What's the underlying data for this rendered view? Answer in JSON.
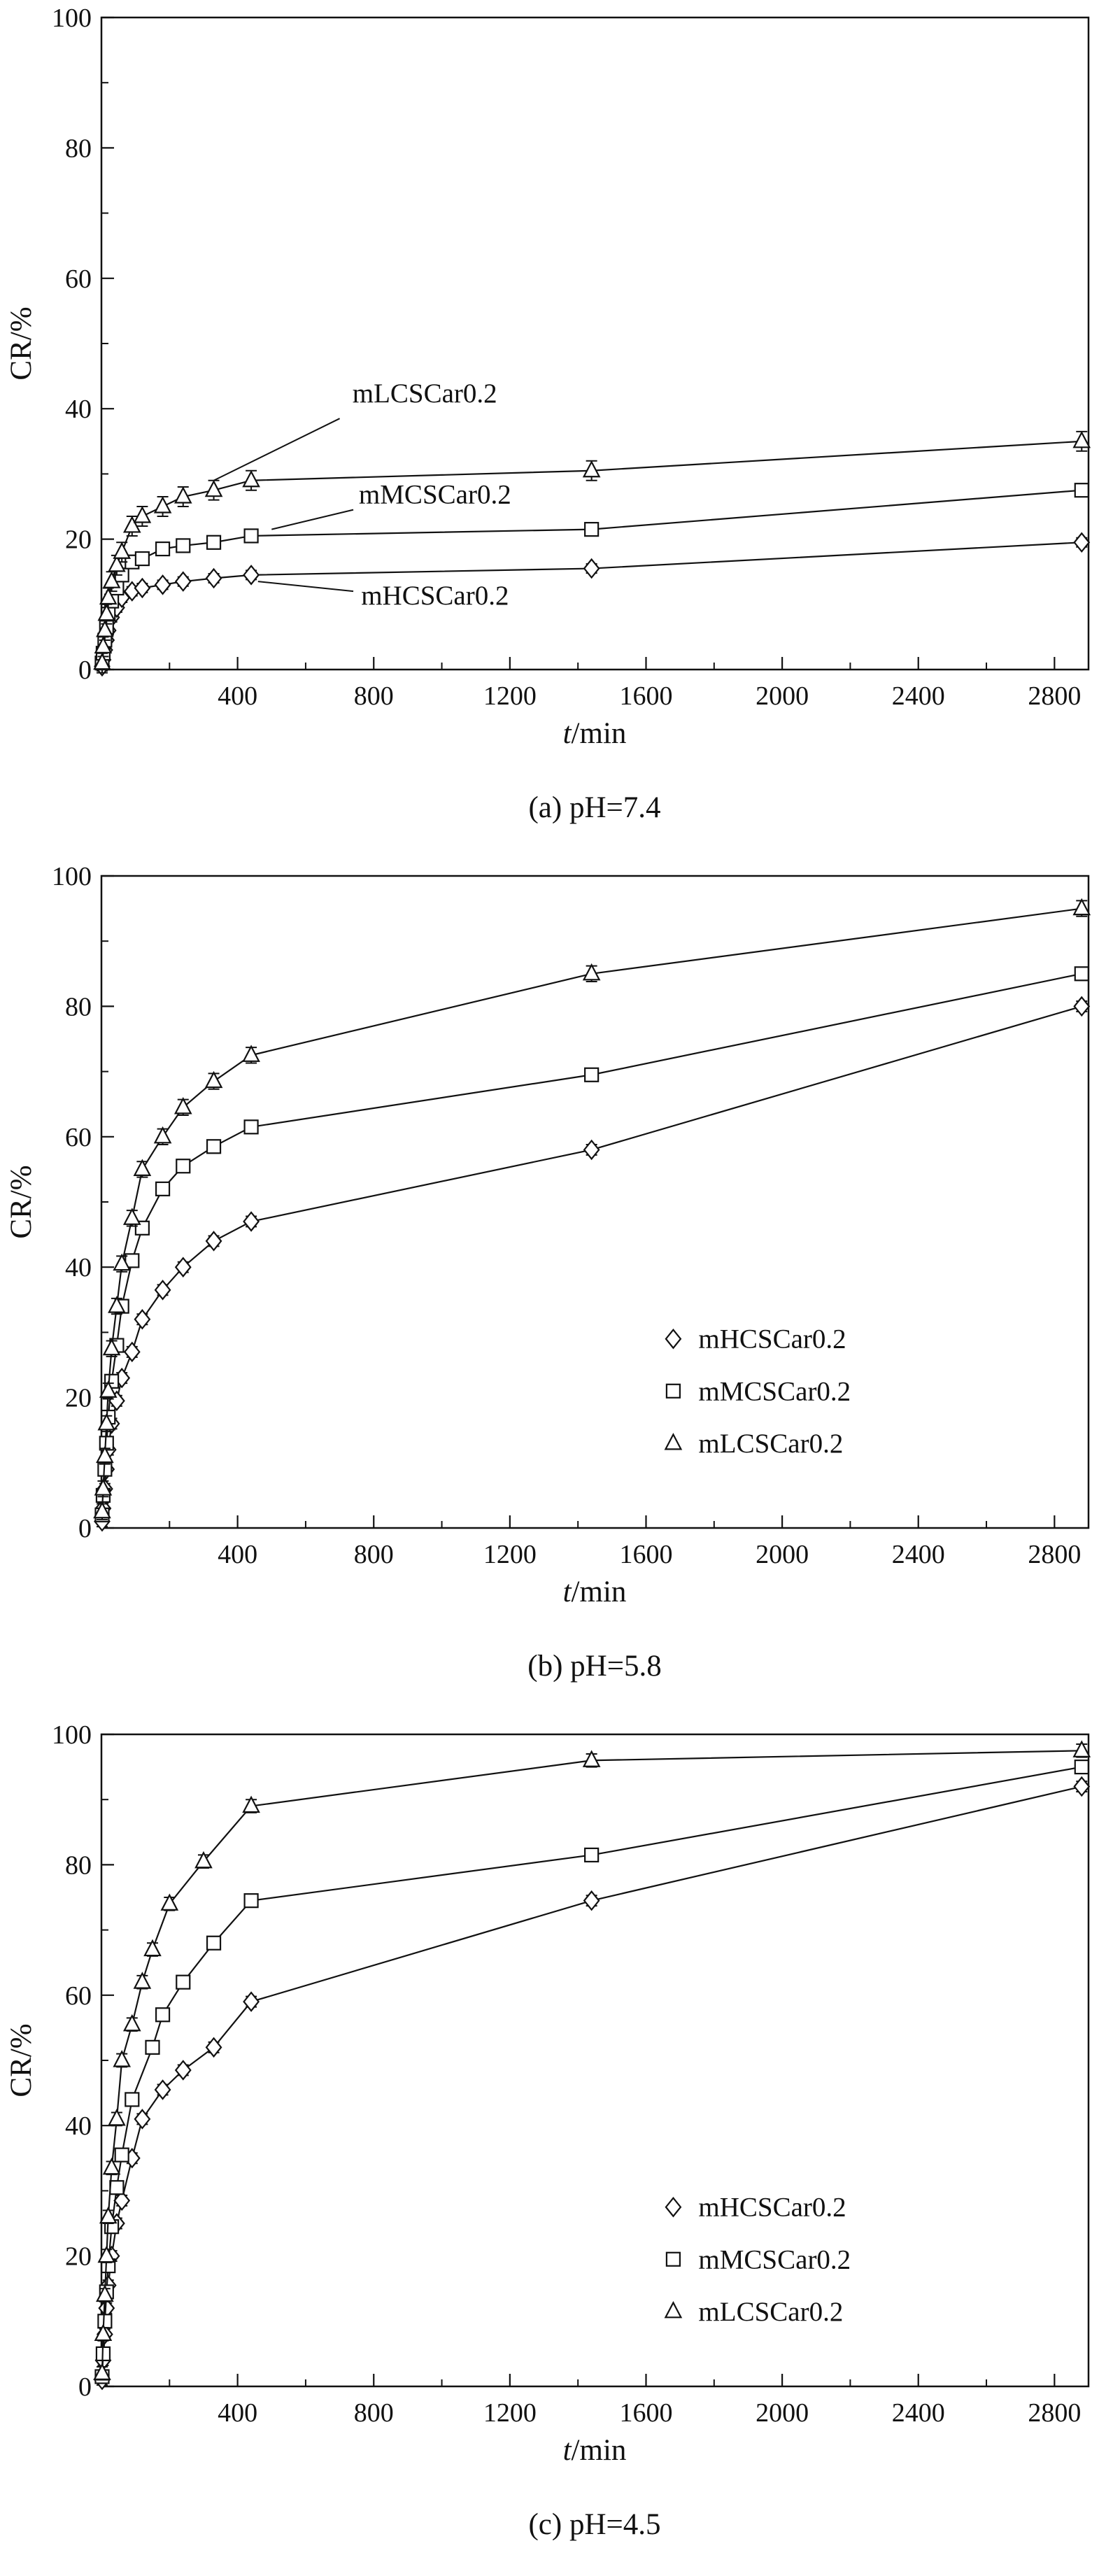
{
  "figure": {
    "background": "#ffffff",
    "line_color": "#111111",
    "marker_fill": "#ffffff"
  },
  "chart_data": [
    {
      "id": "a",
      "type": "line",
      "caption": "(a) pH=7.4",
      "xlabel_italic": "t",
      "xlabel_unit": "/min",
      "ylabel": "CR/%",
      "xlim": [
        0,
        2900
      ],
      "ylim": [
        0,
        100
      ],
      "xticks": [
        400,
        800,
        1200,
        1600,
        2000,
        2400,
        2800
      ],
      "yticks": [
        0,
        20,
        40,
        60,
        80,
        100
      ],
      "x_minor_step": 200,
      "y_minor_step": 10,
      "grid": false,
      "legend": null,
      "series": [
        {
          "name": "mHCSCar0.2",
          "marker": "diamond",
          "yerr": 0.7,
          "x": [
            2,
            5,
            10,
            15,
            20,
            30,
            45,
            60,
            90,
            120,
            180,
            240,
            330,
            440,
            1440,
            2880
          ],
          "y": [
            0.5,
            1.5,
            3,
            4.5,
            6,
            8,
            9.5,
            11,
            12,
            12.5,
            13,
            13.5,
            14,
            14.5,
            15.5,
            19.5
          ]
        },
        {
          "name": "mMCSCar0.2",
          "marker": "square",
          "yerr": 1.0,
          "x": [
            2,
            5,
            10,
            15,
            20,
            30,
            45,
            60,
            90,
            120,
            180,
            240,
            330,
            440,
            1440,
            2880
          ],
          "y": [
            1,
            2.5,
            4.5,
            6.5,
            8.5,
            10.5,
            12.5,
            14.5,
            16.5,
            17,
            18.5,
            19,
            19.5,
            20.5,
            21.5,
            27.5
          ]
        },
        {
          "name": "mLCSCar0.2",
          "marker": "triangle",
          "yerr": 1.5,
          "x": [
            2,
            5,
            10,
            15,
            20,
            30,
            45,
            60,
            90,
            120,
            180,
            240,
            330,
            440,
            1440,
            2880
          ],
          "y": [
            1,
            3.5,
            6,
            8.5,
            11,
            13.5,
            16,
            18,
            22,
            23.5,
            25,
            26.5,
            27.5,
            29,
            30.5,
            35
          ]
        }
      ],
      "annotations": [
        {
          "text": "mLCSCar0.2",
          "x": 950,
          "y": 41,
          "leader": [
            [
              700,
              38.5
            ],
            [
              330,
              29
            ]
          ]
        },
        {
          "text": "mMCSCar0.2",
          "x": 980,
          "y": 25.5,
          "leader": [
            [
              740,
              24.5
            ],
            [
              500,
              21.5
            ]
          ]
        },
        {
          "text": "mHCSCar0.2",
          "x": 980,
          "y": 10,
          "leader": [
            [
              740,
              12
            ],
            [
              460,
              13.5
            ]
          ]
        }
      ]
    },
    {
      "id": "b",
      "type": "line",
      "caption": "(b) pH=5.8",
      "xlabel_italic": "t",
      "xlabel_unit": "/min",
      "ylabel": "CR/%",
      "xlim": [
        0,
        2900
      ],
      "ylim": [
        0,
        100
      ],
      "xticks": [
        400,
        800,
        1200,
        1600,
        2000,
        2400,
        2800
      ],
      "yticks": [
        0,
        20,
        40,
        60,
        80,
        100
      ],
      "x_minor_step": 200,
      "y_minor_step": 10,
      "grid": false,
      "legend": {
        "x": 1680,
        "y_start": 29,
        "row_step": 8,
        "entries": [
          "mHCSCar0.2",
          "mMCSCar0.2",
          "mLCSCar0.2"
        ]
      },
      "series": [
        {
          "name": "mHCSCar0.2",
          "marker": "diamond",
          "yerr": 0.8,
          "x": [
            2,
            5,
            10,
            15,
            20,
            30,
            45,
            60,
            90,
            120,
            180,
            240,
            330,
            440,
            1440,
            2880
          ],
          "y": [
            1,
            3,
            6,
            9,
            12,
            16,
            19.5,
            23,
            27,
            32,
            36.5,
            40,
            44,
            47,
            58,
            80
          ]
        },
        {
          "name": "mMCSCar0.2",
          "marker": "square",
          "yerr": 1.0,
          "x": [
            2,
            5,
            10,
            15,
            20,
            30,
            45,
            60,
            90,
            120,
            180,
            240,
            330,
            440,
            1440,
            2880
          ],
          "y": [
            2,
            5,
            9,
            13,
            17,
            22.5,
            28,
            34,
            41,
            46,
            52,
            55.5,
            58.5,
            61.5,
            69.5,
            85
          ]
        },
        {
          "name": "mLCSCar0.2",
          "marker": "triangle",
          "yerr": 1.2,
          "x": [
            2,
            5,
            10,
            15,
            20,
            30,
            45,
            60,
            90,
            120,
            180,
            240,
            330,
            440,
            1440,
            2880
          ],
          "y": [
            2.5,
            6,
            11,
            16,
            21,
            27.5,
            34,
            40.5,
            47.5,
            55,
            60,
            64.5,
            68.5,
            72.5,
            85,
            95
          ]
        }
      ],
      "annotations": []
    },
    {
      "id": "c",
      "type": "line",
      "caption": "(c) pH=4.5",
      "xlabel_italic": "t",
      "xlabel_unit": "/min",
      "ylabel": "CR/%",
      "xlim": [
        0,
        2900
      ],
      "ylim": [
        0,
        100
      ],
      "xticks": [
        400,
        800,
        1200,
        1600,
        2000,
        2400,
        2800
      ],
      "yticks": [
        0,
        20,
        40,
        60,
        80,
        100
      ],
      "x_minor_step": 200,
      "y_minor_step": 10,
      "grid": false,
      "legend": {
        "x": 1680,
        "y_start": 27.5,
        "row_step": 8,
        "entries": [
          "mHCSCar0.2",
          "mMCSCar0.2",
          "mLCSCar0.2"
        ]
      },
      "series": [
        {
          "name": "mHCSCar0.2",
          "marker": "diamond",
          "yerr": 0.8,
          "x": [
            2,
            5,
            10,
            15,
            20,
            30,
            45,
            60,
            90,
            120,
            180,
            240,
            330,
            440,
            1440,
            2880
          ],
          "y": [
            1,
            4,
            8,
            12,
            15.5,
            20,
            25,
            28.5,
            35,
            41,
            45.5,
            48.5,
            52,
            59,
            74.5,
            92
          ]
        },
        {
          "name": "mMCSCar0.2",
          "marker": "square",
          "yerr": 0.8,
          "x": [
            2,
            5,
            10,
            15,
            20,
            30,
            45,
            60,
            90,
            150,
            180,
            240,
            330,
            440,
            1440,
            2880
          ],
          "y": [
            1.5,
            5,
            10,
            14.5,
            18.5,
            24.5,
            30.5,
            35.5,
            44,
            52,
            57,
            62,
            68,
            74.5,
            81.5,
            95
          ]
        },
        {
          "name": "mLCSCar0.2",
          "marker": "triangle",
          "yerr": 1.0,
          "x": [
            2,
            5,
            10,
            15,
            20,
            30,
            45,
            60,
            90,
            120,
            150,
            200,
            300,
            440,
            1440,
            2880
          ],
          "y": [
            2,
            8,
            14,
            20,
            26,
            33.5,
            41,
            50,
            55.5,
            62,
            67,
            74,
            80.5,
            89,
            96,
            97.5
          ]
        }
      ],
      "annotations": []
    }
  ]
}
